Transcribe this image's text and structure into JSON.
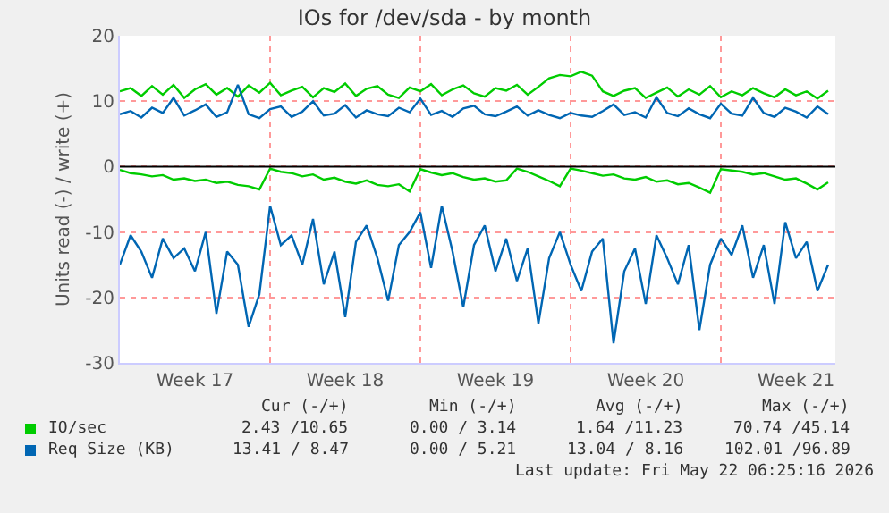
{
  "chart_data": {
    "type": "line",
    "title": "IOs for /dev/sda - by month",
    "ylabel": "Units read (-) / write (+)",
    "x": [
      "2026-04-20T00:00",
      "2026-04-20T12:00",
      "2026-04-21T00:00",
      "2026-04-21T12:00",
      "2026-04-22T00:00",
      "2026-04-22T12:00",
      "2026-04-23T00:00",
      "2026-04-23T12:00",
      "2026-04-24T00:00",
      "2026-04-24T12:00",
      "2026-04-25T00:00",
      "2026-04-25T12:00",
      "2026-04-26T00:00",
      "2026-04-26T12:00",
      "2026-04-27T00:00",
      "2026-04-27T12:00",
      "2026-04-28T00:00",
      "2026-04-28T12:00",
      "2026-04-29T00:00",
      "2026-04-29T12:00",
      "2026-04-30T00:00",
      "2026-04-30T12:00",
      "2026-05-01T00:00",
      "2026-05-01T12:00",
      "2026-05-02T00:00",
      "2026-05-02T12:00",
      "2026-05-03T00:00",
      "2026-05-03T12:00",
      "2026-05-04T00:00",
      "2026-05-04T12:00",
      "2026-05-05T00:00",
      "2026-05-05T12:00",
      "2026-05-06T00:00",
      "2026-05-06T12:00",
      "2026-05-07T00:00",
      "2026-05-07T12:00",
      "2026-05-08T00:00",
      "2026-05-08T12:00",
      "2026-05-09T00:00",
      "2026-05-09T12:00",
      "2026-05-10T00:00",
      "2026-05-10T12:00",
      "2026-05-11T00:00",
      "2026-05-11T12:00",
      "2026-05-12T00:00",
      "2026-05-12T12:00",
      "2026-05-13T00:00",
      "2026-05-13T12:00",
      "2026-05-14T00:00",
      "2026-05-14T12:00",
      "2026-05-15T00:00",
      "2026-05-15T12:00",
      "2026-05-16T00:00",
      "2026-05-16T12:00",
      "2026-05-17T00:00",
      "2026-05-17T12:00",
      "2026-05-18T00:00",
      "2026-05-18T12:00",
      "2026-05-19T00:00",
      "2026-05-19T12:00",
      "2026-05-20T00:00",
      "2026-05-20T12:00",
      "2026-05-21T00:00",
      "2026-05-21T12:00",
      "2026-05-22T00:00",
      "2026-05-22T12:00",
      "2026-05-23T00:00"
    ],
    "series": [
      {
        "name": "IO/sec",
        "color": "#00cc00",
        "values": [
          11.5,
          12,
          10.8,
          12.3,
          11,
          12.5,
          10.5,
          11.8,
          12.6,
          11,
          12,
          10.7,
          12.4,
          11.3,
          12.8,
          10.9,
          11.6,
          12.2,
          10.6,
          12,
          11.4,
          12.7,
          10.8,
          11.9,
          12.3,
          11,
          10.5,
          12.1,
          11.5,
          12.6,
          10.9,
          11.8,
          12.4,
          11.2,
          10.7,
          12,
          11.6,
          12.5,
          11,
          12.2,
          13.5,
          14,
          13.8,
          14.5,
          13.9,
          11.5,
          10.8,
          11.6,
          12,
          10.5,
          11.3,
          12.1,
          10.7,
          11.8,
          11,
          12.3,
          10.6,
          11.5,
          10.9,
          12,
          11.2,
          10.6,
          11.8,
          10.9,
          11.5,
          10.4,
          11.6
        ]
      },
      {
        "color": "#00cc00",
        "values": [
          -0.5,
          -1,
          -1.2,
          -1.5,
          -1.3,
          -2,
          -1.8,
          -2.2,
          -2,
          -2.5,
          -2.3,
          -2.8,
          -3,
          -3.5,
          -0.3,
          -0.8,
          -1,
          -1.5,
          -1.2,
          -2,
          -1.7,
          -2.3,
          -2.6,
          -2.1,
          -2.8,
          -3,
          -2.7,
          -3.8,
          -0.4,
          -0.9,
          -1.3,
          -1,
          -1.6,
          -2,
          -1.8,
          -2.3,
          -2.1,
          -0.3,
          -0.8,
          -1.5,
          -2.2,
          -3,
          -0.3,
          -0.6,
          -1,
          -1.4,
          -1.2,
          -1.8,
          -2,
          -1.6,
          -2.3,
          -2.1,
          -2.7,
          -2.5,
          -3.2,
          -4,
          -0.4,
          -0.6,
          -0.8,
          -1.2,
          -1,
          -1.5,
          -2,
          -1.8,
          -2.6,
          -3.5,
          -2.4
        ]
      },
      {
        "name": "Req Size (KB)",
        "color": "#0066b3",
        "values": [
          8,
          8.5,
          7.5,
          9,
          8.2,
          10.5,
          7.8,
          8.6,
          9.5,
          7.6,
          8.3,
          12.5,
          8,
          7.4,
          8.8,
          9.2,
          7.6,
          8.4,
          10,
          7.8,
          8.1,
          9.4,
          7.5,
          8.6,
          8,
          7.7,
          9,
          8.3,
          10.4,
          7.9,
          8.5,
          7.6,
          8.9,
          9.3,
          8,
          7.7,
          8.4,
          9.2,
          7.8,
          8.6,
          7.9,
          7.4,
          8.2,
          7.8,
          7.6,
          8.5,
          9.5,
          7.9,
          8.3,
          7.5,
          10.6,
          8.2,
          7.7,
          8.9,
          8,
          7.4,
          9.6,
          8.1,
          7.8,
          10.5,
          8.2,
          7.6,
          9,
          8.4,
          7.5,
          9.2,
          8
        ]
      },
      {
        "color": "#0066b3",
        "values": [
          -15,
          -10.5,
          -13,
          -17,
          -11,
          -14,
          -12.5,
          -16,
          -10,
          -22.5,
          -13,
          -15,
          -24.5,
          -19.5,
          -6,
          -12,
          -10.5,
          -15,
          -8,
          -18,
          -13,
          -23,
          -11.5,
          -9,
          -14,
          -20.5,
          -12,
          -10,
          -7,
          -15.5,
          -6,
          -13,
          -21.5,
          -12,
          -9,
          -16,
          -11,
          -17.5,
          -12.5,
          -24,
          -14,
          -10,
          -15,
          -19,
          -13,
          -11,
          -27,
          -16,
          -12.5,
          -21,
          -10.5,
          -14,
          -18,
          -12,
          -25,
          -15,
          -11,
          -13.5,
          -9,
          -17,
          -12,
          -21,
          -8.5,
          -14,
          -11.5,
          -19,
          -15
        ]
      }
    ],
    "xlim": [
      "2026-04-20T00:00",
      "2026-05-23T08:00"
    ],
    "xticks": [
      {
        "value": "2026-04-23T12:00",
        "label": "Week 17"
      },
      {
        "value": "2026-04-30T12:00",
        "label": "Week 18"
      },
      {
        "value": "2026-05-07T12:00",
        "label": "Week 19"
      },
      {
        "value": "2026-05-14T12:00",
        "label": "Week 20"
      },
      {
        "value": "2026-05-21T12:00",
        "label": "Week 21"
      }
    ],
    "ylim": [
      -30,
      20
    ],
    "yticks": [
      -30,
      -20,
      -10,
      0,
      10,
      20
    ],
    "grid": "y",
    "legend": "bottom left",
    "marker": "none",
    "line_style": "solid",
    "ref_lines": [
      {
        "axis": "x",
        "value": "2026-04-27T00:00",
        "color": "#ff9999",
        "line_style": "dotted"
      },
      {
        "axis": "x",
        "value": "2026-05-04T00:00",
        "color": "#ff9999",
        "line_style": "dotted"
      },
      {
        "axis": "x",
        "value": "2026-05-11T00:00",
        "color": "#ff9999",
        "line_style": "dotted"
      },
      {
        "axis": "x",
        "value": "2026-05-18T00:00",
        "color": "#ff9999",
        "line_style": "dotted"
      },
      {
        "axis": "y",
        "value": 0,
        "color": "#000000",
        "line_style": "solid"
      }
    ],
    "annotations": [
      "Cur (-/+)",
      "Min (-/+)",
      "Avg (-/+)",
      "Max (-/+)",
      "2.43 /10.65",
      "0.00 / 3.14",
      "1.64 /11.23",
      "70.74 /45.14",
      "13.41 / 8.47",
      "0.00 / 5.21",
      "13.04 / 8.16",
      "102.01 /96.89",
      "Last update: Fri May 22 06:25:16 2026"
    ]
  }
}
